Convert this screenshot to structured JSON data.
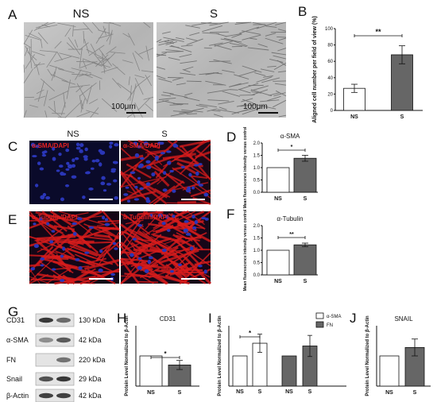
{
  "panels": {
    "A": {
      "letter": "A",
      "headers": [
        "NS",
        "S"
      ],
      "scale_bar": "100μm"
    },
    "C": {
      "letter": "C",
      "headers": [
        "NS",
        "S"
      ],
      "stain_ns": "α-SMA/DAPI",
      "stain_s": "α-SMA/DAPI"
    },
    "E": {
      "letter": "E",
      "stain_ns": "α-Tubulin/DAPI",
      "stain_s": "α-Tubulin/DAPI"
    },
    "G": {
      "letter": "G",
      "lanes": [
        "NS",
        "S"
      ],
      "rows": [
        {
          "protein": "CD31",
          "size": "130 kDa"
        },
        {
          "protein": "α-SMA",
          "size": "42 kDa"
        },
        {
          "protein": "FN",
          "size": "220 kDa"
        },
        {
          "protein": "Snail",
          "size": "29 kDa"
        },
        {
          "protein": "β-Actin",
          "size": "42 kDa"
        }
      ]
    }
  },
  "colors": {
    "open_bar": "#ffffff",
    "filled_bar": "#666666",
    "fl_red": "#d81c1c",
    "fl_blue": "#2a36b8"
  },
  "chart_data": [
    {
      "id": "B",
      "letter": "B",
      "type": "bar",
      "title": "",
      "categories": [
        "NS",
        "S"
      ],
      "values": [
        27,
        68
      ],
      "errors": [
        5,
        11
      ],
      "ylabel": "Aligned cell number per field of view (%)",
      "ylim": [
        0,
        100
      ],
      "yticks": [
        "0",
        "20",
        "40",
        "60",
        "80",
        "100"
      ],
      "significance": "**"
    },
    {
      "id": "D",
      "letter": "D",
      "type": "bar",
      "title": "α-SMA",
      "categories": [
        "NS",
        "S"
      ],
      "values": [
        1.0,
        1.38
      ],
      "errors": [
        0,
        0.12
      ],
      "ylabel": "Mean fluorescence intensity versus control",
      "ylim": [
        0,
        2.0
      ],
      "yticks": [
        "0.0",
        "0.5",
        "1.0",
        "1.5",
        "2.0"
      ],
      "significance": "*"
    },
    {
      "id": "F",
      "letter": "F",
      "type": "bar",
      "title": "α-Tubulin",
      "categories": [
        "NS",
        "S"
      ],
      "values": [
        1.0,
        1.22
      ],
      "errors": [
        0,
        0.07
      ],
      "ylabel": "Mean fluorescence intensity versus control",
      "ylim": [
        0,
        2.0
      ],
      "yticks": [
        "0.0",
        "0.5",
        "1.0",
        "1.5",
        "2.0"
      ],
      "significance": "**"
    },
    {
      "id": "H",
      "letter": "H",
      "type": "bar",
      "title": "CD31",
      "categories": [
        "NS",
        "S"
      ],
      "values": [
        1.0,
        0.7
      ],
      "errors": [
        0,
        0.15
      ],
      "ylabel": "Protein Level Normalized to β-Actin",
      "ylim": [
        0,
        2.0
      ],
      "significance": "*"
    },
    {
      "id": "I",
      "letter": "I",
      "type": "bar",
      "title": "",
      "categories": [
        "NS",
        "S"
      ],
      "series": [
        {
          "name": "α-SMA",
          "values": [
            1.0,
            1.42
          ],
          "errors": [
            0,
            0.3
          ]
        },
        {
          "name": "FN",
          "values": [
            1.0,
            1.33
          ],
          "errors": [
            0,
            0.35
          ]
        }
      ],
      "ylabel": "Protein Level Normalized to β-Actin",
      "ylim": [
        0,
        2.0
      ],
      "significance": "*",
      "legend": "top-right"
    },
    {
      "id": "J",
      "letter": "J",
      "type": "bar",
      "title": "SNAIL",
      "categories": [
        "NS",
        "S"
      ],
      "values": [
        1.0,
        1.28
      ],
      "errors": [
        0,
        0.28
      ],
      "ylabel": "Protein Level Normalized to β-Actin",
      "ylim": [
        0,
        2.0
      ]
    }
  ]
}
